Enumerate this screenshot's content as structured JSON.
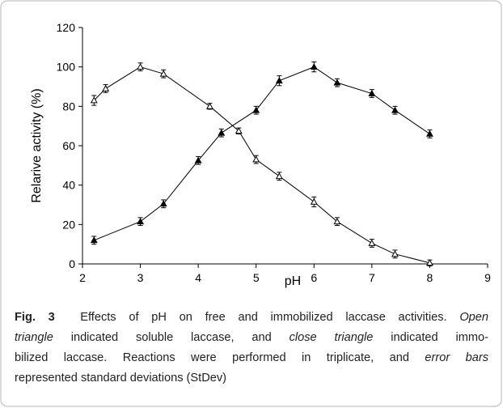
{
  "chart_data": {
    "type": "line",
    "x_label": "pH",
    "y_label": "Relarive activity (%)",
    "xlim": [
      2,
      9
    ],
    "xticks": [
      2,
      3,
      4,
      5,
      6,
      7,
      8,
      9
    ],
    "ylim": [
      0,
      120
    ],
    "yticks": [
      0,
      20,
      40,
      60,
      80,
      100,
      120
    ],
    "series": [
      {
        "marker": "open-triangle",
        "color": "#000000",
        "x": [
          2.2,
          2.4,
          3,
          3.4,
          4.2,
          4.7,
          5,
          5.4,
          6,
          6.4,
          7,
          7.4,
          8
        ],
        "values": [
          83,
          89,
          100,
          96.5,
          80,
          67.5,
          53,
          44.5,
          31.5,
          21.5,
          10.5,
          5,
          0.5
        ],
        "errors": [
          2.5,
          2,
          2,
          2,
          1.5,
          1.5,
          2,
          2,
          2.5,
          2,
          2,
          2,
          1.5
        ]
      },
      {
        "marker": "filled-triangle",
        "color": "#000000",
        "x": [
          2.2,
          3,
          3.4,
          4,
          4.4,
          5,
          5.4,
          6,
          6.4,
          7,
          7.4,
          8
        ],
        "values": [
          12,
          21.5,
          30.5,
          52.5,
          66.5,
          78,
          93,
          100,
          92,
          86.5,
          78,
          66
        ],
        "errors": [
          2,
          2,
          2,
          2,
          2,
          2,
          2.5,
          2.5,
          2,
          2,
          2,
          2
        ]
      }
    ],
    "caption": [
      [
        {
          "text": "Fig. 3",
          "style": "bold"
        },
        {
          "text": "  Effects of pH on free and immobilized laccase activities. ",
          "style": "normal"
        },
        {
          "text": "Open",
          "style": "italic"
        }
      ],
      [
        {
          "text": "triangle",
          "style": "italic"
        },
        {
          "text": " indicated soluble laccase, and ",
          "style": "normal"
        },
        {
          "text": "close triangle",
          "style": "italic"
        },
        {
          "text": " indicated immo-",
          "style": "normal"
        }
      ],
      [
        {
          "text": "bilized laccase. Reactions were performed in triplicate, and ",
          "style": "normal"
        },
        {
          "text": "error bars",
          "style": "italic"
        }
      ],
      [
        {
          "text": "represented standard deviations (StDev)",
          "style": "normal"
        }
      ]
    ]
  }
}
